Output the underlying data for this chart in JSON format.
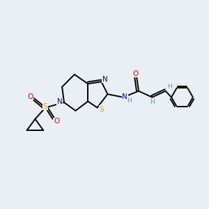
{
  "background_color": "#eaeff3",
  "atom_colors": {
    "N": "#0000ff",
    "S": "#ccaa00",
    "O": "#ff0000",
    "C": "#000000",
    "H": "#5a9a9a"
  },
  "figsize": [
    3.0,
    3.0
  ],
  "dpi": 100
}
